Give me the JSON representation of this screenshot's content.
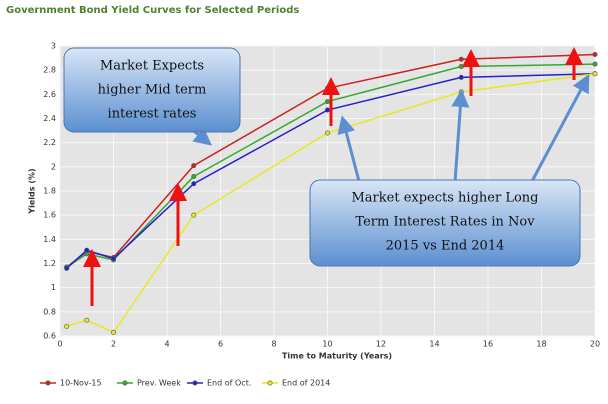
{
  "chart_data": {
    "type": "line",
    "title": "Government Bond Yield Curves for Selected Periods",
    "x_label": "Time to Maturity (Years)",
    "y_label": "Yields (%)",
    "x": [
      0.25,
      1,
      2,
      5,
      10,
      15,
      20
    ],
    "series": [
      {
        "name": "10-Nov-15",
        "color": "#cc2222",
        "values": [
          1.17,
          1.3,
          1.25,
          2.01,
          2.65,
          2.89,
          2.93
        ]
      },
      {
        "name": "Prev. Week",
        "color": "#33aa33",
        "values": [
          1.17,
          1.28,
          1.23,
          1.92,
          2.54,
          2.83,
          2.85
        ]
      },
      {
        "name": "End of Oct.",
        "color": "#2222cc",
        "values": [
          1.16,
          1.31,
          1.24,
          1.86,
          2.47,
          2.74,
          2.77
        ]
      },
      {
        "name": "End of 2014",
        "color": "#e8e820",
        "values": [
          0.68,
          0.73,
          0.63,
          1.6,
          2.28,
          2.62,
          2.77
        ]
      }
    ],
    "xlim": [
      0,
      20
    ],
    "xticks": [
      0,
      2,
      4,
      6,
      8,
      10,
      12,
      14,
      16,
      18,
      20
    ],
    "ylim": [
      0.6,
      3
    ],
    "yticks": [
      0.6,
      0.8,
      1,
      1.2,
      1.4,
      1.6,
      1.8,
      2,
      2.2,
      2.4,
      2.6,
      2.8,
      3
    ],
    "grid": true,
    "annotations": [
      {
        "lines": [
          "Market Expects",
          "higher Mid term",
          "interest rates"
        ]
      },
      {
        "lines": [
          "Market expects higher Long",
          "Term Interest Rates in Nov",
          "2015 vs End 2014"
        ]
      }
    ]
  }
}
